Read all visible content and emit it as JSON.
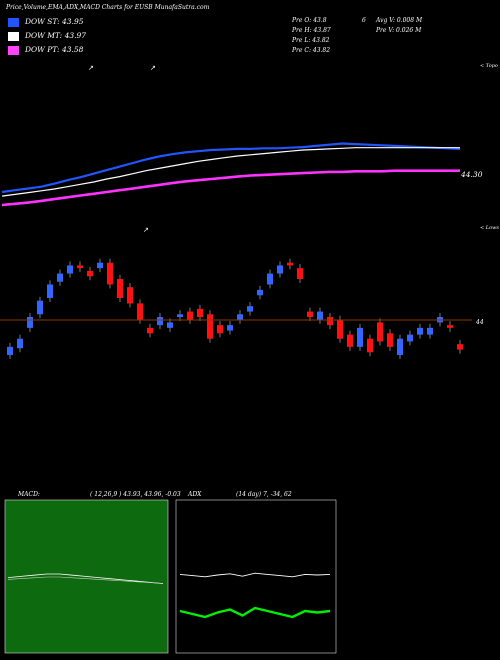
{
  "header": {
    "title": "Price,Volume,EMA,ADX,MACD Charts for EUSB MunafaSutra.com"
  },
  "legend": [
    {
      "label": "DOW ST: 43.95",
      "color": "#2255ff"
    },
    {
      "label": "DOW MT: 43.97",
      "color": "#ffffff"
    },
    {
      "label": "DOW PT: 43.58",
      "color": "#ff44ff"
    }
  ],
  "stats": {
    "prev_open": "Pre   O: 43.8",
    "prev_high": "Pre   H: 43.87",
    "prev_low": "Pre   L: 43.82",
    "prev_close": "Pre   C: 43.82",
    "count": "6",
    "avg_volume": "Avg V: 0.008  M",
    "prev_volume": "Pre   V: 0.026  M"
  },
  "annotations": {
    "topo": "< Topo",
    "lows": "< Lows",
    "price_label": "44.30",
    "right_44": "44"
  },
  "macd_label": {
    "left": "MACD:",
    "right": "( 12,26,9 ) 43.93, 43.96, -0.03"
  },
  "adx_label": {
    "left": "ADX",
    "right": "(14  day) 7,  -34,  62"
  },
  "colors": {
    "up": "#3366ff",
    "down": "#ff1111",
    "ema_short": "#2255ff",
    "ema_pt": "#ff33ff",
    "macd_bg": "#0e6a0e",
    "adx_green": "#00ee00"
  },
  "chart_data": [
    {
      "type": "line",
      "title": "Price and EMA",
      "series": [
        {
          "name": "DOW ST",
          "values": [
            43.22,
            43.25,
            43.28,
            43.31,
            43.36,
            43.42,
            43.47,
            43.53,
            43.59,
            43.65,
            43.71,
            43.77,
            43.82,
            43.86,
            43.89,
            43.91,
            43.93,
            43.94,
            43.95,
            43.95,
            43.96,
            43.96,
            43.97,
            43.98,
            44.0,
            44.02,
            44.04,
            44.03,
            44.02,
            44.01,
            44.0,
            43.99,
            43.98,
            43.97,
            43.96,
            43.95
          ]
        },
        {
          "name": "DOW MT",
          "values": [
            43.15,
            43.18,
            43.21,
            43.24,
            43.27,
            43.31,
            43.35,
            43.39,
            43.44,
            43.48,
            43.53,
            43.58,
            43.62,
            43.66,
            43.7,
            43.74,
            43.77,
            43.8,
            43.83,
            43.85,
            43.87,
            43.89,
            43.91,
            43.93,
            43.94,
            43.95,
            43.96,
            43.97,
            43.97,
            43.97,
            43.97,
            43.97,
            43.97,
            43.97,
            43.97,
            43.97
          ]
        },
        {
          "name": "DOW PT",
          "values": [
            43.0,
            43.02,
            43.04,
            43.07,
            43.1,
            43.13,
            43.16,
            43.19,
            43.22,
            43.25,
            43.28,
            43.31,
            43.34,
            43.37,
            43.4,
            43.42,
            43.44,
            43.46,
            43.48,
            43.5,
            43.51,
            43.52,
            43.53,
            43.54,
            43.55,
            43.56,
            43.56,
            43.57,
            43.57,
            43.57,
            43.58,
            43.58,
            43.58,
            43.58,
            43.58,
            43.58
          ]
        }
      ]
    },
    {
      "type": "bar",
      "title": "Candles",
      "categories": [
        "1",
        "2",
        "3",
        "4",
        "5",
        "6",
        "7",
        "8",
        "9",
        "10",
        "11",
        "12",
        "13",
        "14",
        "15",
        "16",
        "17",
        "18",
        "19",
        "20",
        "21",
        "22",
        "23",
        "24",
        "25",
        "26",
        "27",
        "28",
        "29",
        "30",
        "31",
        "32",
        "33",
        "34",
        "35",
        "36",
        "37",
        "38",
        "39",
        "40",
        "41",
        "42",
        "43",
        "44",
        "45",
        "46"
      ],
      "series": [
        {
          "name": "open",
          "values": [
            43.3,
            43.35,
            43.5,
            43.6,
            43.72,
            43.84,
            43.9,
            43.96,
            43.92,
            43.94,
            43.98,
            43.86,
            43.8,
            43.68,
            43.5,
            43.52,
            43.5,
            43.58,
            43.62,
            43.64,
            43.6,
            43.52,
            43.48,
            43.56,
            43.62,
            43.74,
            43.82,
            43.9,
            43.98,
            43.94,
            43.62,
            43.56,
            43.58,
            43.56,
            43.45,
            43.36,
            43.42,
            43.54,
            43.46,
            43.3,
            43.4,
            43.45,
            43.45,
            43.54,
            43.52,
            43.38
          ]
        },
        {
          "name": "close",
          "values": [
            43.36,
            43.42,
            43.58,
            43.7,
            43.82,
            43.9,
            43.96,
            43.94,
            43.88,
            43.98,
            43.82,
            43.72,
            43.68,
            43.56,
            43.46,
            43.58,
            43.54,
            43.6,
            43.56,
            43.58,
            43.42,
            43.46,
            43.52,
            43.6,
            43.66,
            43.78,
            43.9,
            43.96,
            43.96,
            43.86,
            43.58,
            43.62,
            43.52,
            43.42,
            43.36,
            43.5,
            43.32,
            43.4,
            43.36,
            43.42,
            43.45,
            43.5,
            43.5,
            43.58,
            43.5,
            43.34
          ]
        }
      ]
    },
    {
      "type": "line",
      "title": "MACD",
      "series": [
        {
          "name": "MACD",
          "values": [
            0.02,
            0.03,
            0.04,
            0.05,
            0.05,
            0.04,
            0.03,
            0.02,
            0.01,
            0.0,
            -0.01,
            -0.02,
            -0.03
          ]
        }
      ]
    },
    {
      "type": "line",
      "title": "ADX",
      "series": [
        {
          "name": "ADX",
          "values": [
            62,
            60,
            58,
            61,
            63,
            59,
            64,
            62,
            60,
            58,
            62,
            61,
            62
          ]
        }
      ]
    }
  ]
}
